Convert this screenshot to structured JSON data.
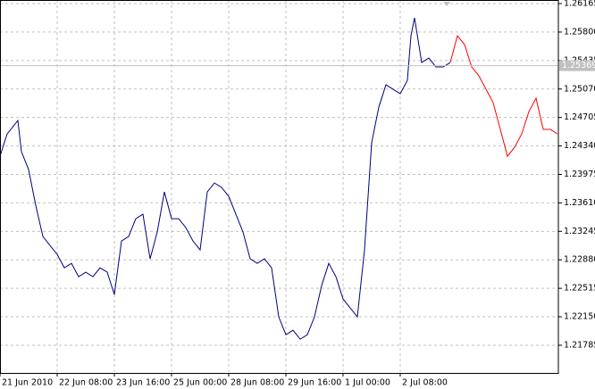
{
  "chart_data": {
    "type": "line",
    "xlim": [
      0,
      78.125
    ],
    "ylim": [
      1.2143,
      1.26211
    ],
    "xticks": [
      {
        "value": 0,
        "label": "21 Jun 2010"
      },
      {
        "value": 8,
        "label": "22 Jun 08:00"
      },
      {
        "value": 16,
        "label": "23 Jun 16:00"
      },
      {
        "value": 24,
        "label": "25 Jun 00:00"
      },
      {
        "value": 32,
        "label": "28 Jun 08:00"
      },
      {
        "value": 40,
        "label": "29 Jun 16:00"
      },
      {
        "value": 48,
        "label": "1 Jul 00:00"
      },
      {
        "value": 56,
        "label": "2 Jul 08:00"
      }
    ],
    "yticks": [
      1.26165,
      {
        "value": 1.258,
        "label": "1.25800"
      },
      1.25435,
      {
        "value": 1.2507,
        "label": "1.25070"
      },
      1.24705,
      {
        "value": 1.2434,
        "label": "1.24340"
      },
      1.23975,
      {
        "value": 1.2361,
        "label": "1.23610"
      },
      1.23245,
      {
        "value": 1.2288,
        "label": "1.22880"
      },
      1.22515,
      {
        "value": 1.2215,
        "label": "1.22150"
      },
      1.21785
    ],
    "grid": true,
    "price_line": 1.25369,
    "series": [
      {
        "color": "#000080",
        "x": [
          0,
          1,
          2,
          2.5,
          3,
          4,
          5,
          6,
          7,
          8,
          9,
          10,
          11,
          12,
          13,
          14,
          15,
          16,
          17,
          18,
          19,
          20,
          21,
          22,
          23,
          24,
          25,
          26,
          27,
          28,
          29,
          30,
          31,
          32,
          33,
          34,
          35,
          36,
          37,
          38,
          39,
          40,
          41,
          42,
          43,
          44,
          45,
          46,
          47,
          48,
          49,
          50,
          51,
          52,
          53,
          54,
          55,
          56,
          57,
          57.5,
          58,
          59,
          60,
          61,
          62,
          63
        ],
        "values": [
          1.24208,
          1.24494,
          1.24609,
          1.24666,
          1.24266,
          1.24037,
          1.23579,
          1.23179,
          1.23064,
          1.2295,
          1.22778,
          1.22835,
          1.22664,
          1.22721,
          1.22664,
          1.22778,
          1.22721,
          1.22435,
          1.23121,
          1.23179,
          1.23408,
          1.23465,
          1.22893,
          1.23236,
          1.23751,
          1.23408,
          1.23408,
          1.23293,
          1.23121,
          1.23007,
          1.23751,
          1.23865,
          1.23808,
          1.23694,
          1.23465,
          1.23236,
          1.22893,
          1.22835,
          1.22893,
          1.22778,
          1.22149,
          1.2192,
          1.21977,
          1.21863,
          1.2192,
          1.22149,
          1.22549,
          1.22835,
          1.22664,
          1.22378,
          1.22263,
          1.22149,
          1.23007,
          1.2438,
          1.24838,
          1.25124,
          1.25067,
          1.25009,
          1.25181,
          1.25753,
          1.25982,
          1.2541,
          1.25467,
          1.25353,
          1.25353,
          1.2541
        ]
      },
      {
        "color": "#ff0000",
        "x": [
          63,
          64,
          65,
          66,
          67,
          68,
          69,
          70,
          71,
          72,
          73,
          74,
          75,
          76,
          77,
          78
        ],
        "values": [
          1.2541,
          1.25753,
          1.25639,
          1.25353,
          1.25238,
          1.25067,
          1.24895,
          1.24552,
          1.24208,
          1.24323,
          1.24494,
          1.24781,
          1.24952,
          1.24552,
          1.24552,
          1.24494
        ]
      }
    ]
  }
}
